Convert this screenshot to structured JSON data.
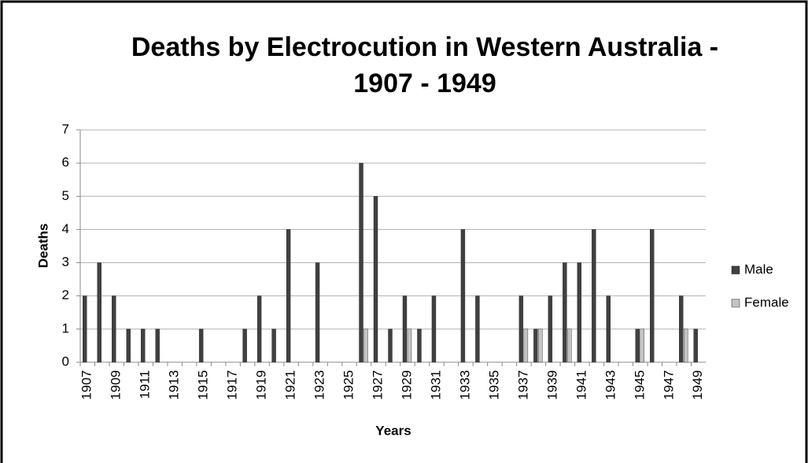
{
  "chart_data": {
    "type": "bar",
    "title": "Deaths by Electrocution in Western Australia -",
    "subtitle": "1907 - 1949",
    "x_label": "Years",
    "y_label": "Deaths",
    "categories": [
      "1907",
      null,
      "1909",
      null,
      "1911",
      null,
      "1913",
      null,
      "1915",
      null,
      "1917",
      null,
      "1919",
      null,
      "1921",
      null,
      "1923",
      null,
      "1925",
      null,
      "1927",
      null,
      "1929",
      null,
      "1931",
      null,
      "1933",
      null,
      "1935",
      null,
      "1937",
      null,
      "1939",
      null,
      "1941",
      null,
      "1943",
      null,
      "1945",
      null,
      "1947",
      null,
      "1949"
    ],
    "series": [
      {
        "name": "Male",
        "color": "#404040",
        "values": [
          2,
          3,
          2,
          1,
          1,
          1,
          0,
          0,
          1,
          0,
          0,
          1,
          2,
          1,
          4,
          0,
          3,
          0,
          0,
          6,
          5,
          1,
          2,
          1,
          2,
          0,
          4,
          2,
          0,
          0,
          2,
          1,
          2,
          3,
          3,
          4,
          2,
          0,
          1,
          4,
          0,
          2,
          1
        ]
      },
      {
        "name": "Female",
        "color": "#c4c4c4",
        "values": [
          0,
          0,
          0,
          0,
          0,
          0,
          0,
          0,
          0,
          0,
          0,
          0,
          0,
          0,
          0,
          0,
          0,
          0,
          0,
          1,
          0,
          0,
          1,
          0,
          0,
          0,
          0,
          0,
          0,
          0,
          1,
          1,
          0,
          1,
          0,
          0,
          0,
          0,
          1,
          0,
          0,
          1,
          0
        ]
      }
    ],
    "ylim": [
      0,
      7
    ],
    "yticks": [
      0,
      1,
      2,
      3,
      4,
      5,
      6,
      7
    ],
    "grid": true,
    "legend": "right"
  }
}
